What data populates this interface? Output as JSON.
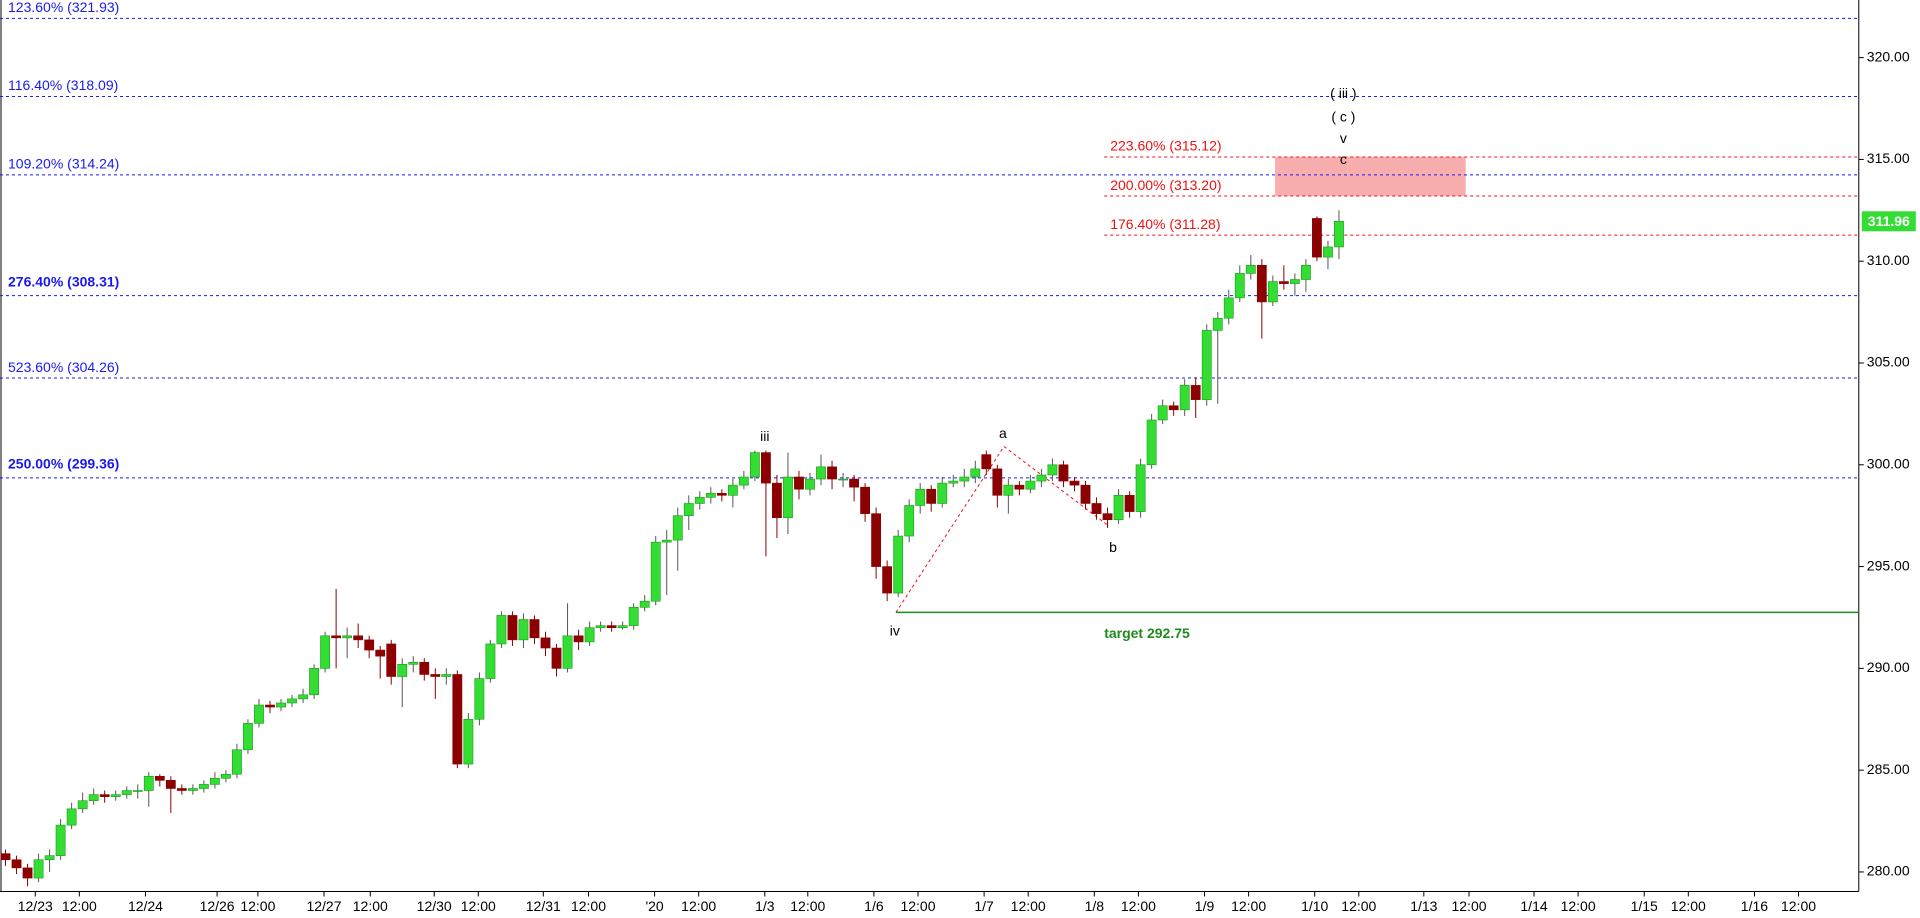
{
  "chart_data": {
    "type": "candlestick",
    "x": [
      0.5,
      1.5,
      2.5,
      3.5,
      4.5,
      5.5,
      6.5,
      7.5,
      8.5,
      9.5,
      10.5,
      11.5,
      12.5,
      13.5,
      14.5,
      15.5,
      16.5,
      17.5,
      18.5,
      19.5,
      20.5,
      21.5,
      22.5,
      23.5,
      24.5,
      25.5,
      26.5,
      27.5,
      28.5,
      29.5,
      30.5,
      31.5,
      32.5,
      33.5,
      34.5,
      35.5,
      36.5,
      37.5,
      38.5,
      39.5,
      40.5,
      41.5,
      42.5,
      43.5,
      44.5,
      45.5,
      46.5,
      47.5,
      48.5,
      49.5,
      50.5,
      51.5,
      52.5,
      53.5,
      54.5,
      55.5,
      56.5,
      57.5,
      58.5,
      59.5,
      60.5,
      61.5,
      62.5,
      63.5,
      64.5,
      65.5,
      66.5,
      67.5,
      68.5,
      69.5,
      70.5,
      71.5,
      72.5,
      73.5,
      74.5,
      75.5,
      76.5,
      77.5,
      78.5,
      79.5,
      80.5,
      81.5,
      82.5,
      83.5,
      84.5,
      85.5,
      86.5,
      87.5,
      88.5,
      89.5,
      90.5,
      91.5,
      92.5,
      93.5,
      94.5,
      95.5,
      96.5,
      97.5,
      98.5,
      99.5,
      100.5,
      101.5,
      102.5,
      103.5,
      104.5,
      105.5,
      106.5,
      107.5,
      108.5,
      109.5,
      110.5,
      111.5,
      112.5,
      113.5,
      114.5,
      115.5,
      116.5,
      117.5,
      118.5,
      119.5,
      120.5,
      121.5
    ],
    "ohlc": [
      [
        280.9,
        281.1,
        280.3,
        280.6
      ],
      [
        280.6,
        280.8,
        279.9,
        280.2
      ],
      [
        280.2,
        280.4,
        279.3,
        279.7
      ],
      [
        279.7,
        280.9,
        279.5,
        280.6
      ],
      [
        280.6,
        281.1,
        280.0,
        280.8
      ],
      [
        280.8,
        282.6,
        280.6,
        282.3
      ],
      [
        282.3,
        283.4,
        282.1,
        283.1
      ],
      [
        283.1,
        283.9,
        282.9,
        283.5
      ],
      [
        283.5,
        284.1,
        283.3,
        283.8
      ],
      [
        283.8,
        284.0,
        283.4,
        283.7
      ],
      [
        283.7,
        284.0,
        283.5,
        283.8
      ],
      [
        283.8,
        284.2,
        283.6,
        284.0
      ],
      [
        284.0,
        284.3,
        283.6,
        284.0
      ],
      [
        284.0,
        284.9,
        283.2,
        284.7
      ],
      [
        284.7,
        284.8,
        284.2,
        284.5
      ],
      [
        284.5,
        284.7,
        282.9,
        284.1
      ],
      [
        284.1,
        284.3,
        283.8,
        284.0
      ],
      [
        284.0,
        284.3,
        283.8,
        284.1
      ],
      [
        284.1,
        284.5,
        283.9,
        284.3
      ],
      [
        284.3,
        284.9,
        284.1,
        284.6
      ],
      [
        284.6,
        285.0,
        284.4,
        284.8
      ],
      [
        284.8,
        286.3,
        284.6,
        286.0
      ],
      [
        286.0,
        287.5,
        285.8,
        287.3
      ],
      [
        287.3,
        288.5,
        287.1,
        288.2
      ],
      [
        288.2,
        288.4,
        287.8,
        288.1
      ],
      [
        288.1,
        288.5,
        287.9,
        288.3
      ],
      [
        288.3,
        288.7,
        288.1,
        288.5
      ],
      [
        288.5,
        289.0,
        288.3,
        288.7
      ],
      [
        288.7,
        290.2,
        288.5,
        290.0
      ],
      [
        290.0,
        291.8,
        289.8,
        291.6
      ],
      [
        291.6,
        293.9,
        290.0,
        291.5
      ],
      [
        291.5,
        292.0,
        290.5,
        291.6
      ],
      [
        291.6,
        292.2,
        291.0,
        291.4
      ],
      [
        291.4,
        291.6,
        290.5,
        290.9
      ],
      [
        290.9,
        291.1,
        289.5,
        290.6
      ],
      [
        291.2,
        291.4,
        289.2,
        289.6
      ],
      [
        289.6,
        290.5,
        288.1,
        290.2
      ],
      [
        290.2,
        290.6,
        289.8,
        290.3
      ],
      [
        290.3,
        290.5,
        289.4,
        289.7
      ],
      [
        289.7,
        290.0,
        288.5,
        289.6
      ],
      [
        289.6,
        290.0,
        289.2,
        289.7
      ],
      [
        289.7,
        289.9,
        285.1,
        285.3
      ],
      [
        285.3,
        287.8,
        285.1,
        287.5
      ],
      [
        287.5,
        289.8,
        287.2,
        289.5
      ],
      [
        289.5,
        291.4,
        289.3,
        291.2
      ],
      [
        291.2,
        292.8,
        291.0,
        292.6
      ],
      [
        292.6,
        292.8,
        291.1,
        291.4
      ],
      [
        291.4,
        292.7,
        291.0,
        292.4
      ],
      [
        292.4,
        292.6,
        291.2,
        291.5
      ],
      [
        291.5,
        291.8,
        290.6,
        291.0
      ],
      [
        291.0,
        291.2,
        289.6,
        290.0
      ],
      [
        290.0,
        293.2,
        289.8,
        291.6
      ],
      [
        291.6,
        291.9,
        290.9,
        291.3
      ],
      [
        291.3,
        292.3,
        291.1,
        292.0
      ],
      [
        292.0,
        292.3,
        291.8,
        292.1
      ],
      [
        292.1,
        292.3,
        291.8,
        292.0
      ],
      [
        292.0,
        292.3,
        291.9,
        292.1
      ],
      [
        292.1,
        293.2,
        291.9,
        293.0
      ],
      [
        293.0,
        293.6,
        292.8,
        293.3
      ],
      [
        293.3,
        296.5,
        293.1,
        296.2
      ],
      [
        296.2,
        296.8,
        293.6,
        296.3
      ],
      [
        296.3,
        297.9,
        294.8,
        297.5
      ],
      [
        297.5,
        298.5,
        296.8,
        298.1
      ],
      [
        298.1,
        298.7,
        297.8,
        298.4
      ],
      [
        298.4,
        298.9,
        298.1,
        298.6
      ],
      [
        298.6,
        298.8,
        298.2,
        298.5
      ],
      [
        298.5,
        299.3,
        297.9,
        299.0
      ],
      [
        299.0,
        299.7,
        298.8,
        299.4
      ],
      [
        299.4,
        300.7,
        299.2,
        300.6
      ],
      [
        300.6,
        300.7,
        295.5,
        299.1
      ],
      [
        299.1,
        299.5,
        296.4,
        297.4
      ],
      [
        297.4,
        300.6,
        296.6,
        299.4
      ],
      [
        299.4,
        299.7,
        298.3,
        298.8
      ],
      [
        298.8,
        299.6,
        298.5,
        299.3
      ],
      [
        299.3,
        300.5,
        299.0,
        299.9
      ],
      [
        299.9,
        300.2,
        298.8,
        299.3
      ],
      [
        299.3,
        299.6,
        298.9,
        299.3
      ],
      [
        299.3,
        299.5,
        298.2,
        298.9
      ],
      [
        298.9,
        299.1,
        297.2,
        297.6
      ],
      [
        297.6,
        297.9,
        294.4,
        295.0
      ],
      [
        295.0,
        295.3,
        293.3,
        293.7
      ],
      [
        293.7,
        296.8,
        293.5,
        296.5
      ],
      [
        296.5,
        298.3,
        296.2,
        298.0
      ],
      [
        298.0,
        299.1,
        297.6,
        298.8
      ],
      [
        298.8,
        299.0,
        297.7,
        298.1
      ],
      [
        298.1,
        299.4,
        297.9,
        299.1
      ],
      [
        299.1,
        299.5,
        298.9,
        299.2
      ],
      [
        299.2,
        299.8,
        298.9,
        299.4
      ],
      [
        299.4,
        300.2,
        299.1,
        299.8
      ],
      [
        300.5,
        300.7,
        299.5,
        299.8
      ],
      [
        299.8,
        300.0,
        297.9,
        298.5
      ],
      [
        298.5,
        299.3,
        297.6,
        299.0
      ],
      [
        299.0,
        299.2,
        298.5,
        298.8
      ],
      [
        298.8,
        299.5,
        298.6,
        299.2
      ],
      [
        299.2,
        299.8,
        298.9,
        299.5
      ],
      [
        299.5,
        300.3,
        299.2,
        300.0
      ],
      [
        300.0,
        300.2,
        298.9,
        299.2
      ],
      [
        299.2,
        299.4,
        298.7,
        299.0
      ],
      [
        299.0,
        299.2,
        297.8,
        298.1
      ],
      [
        298.1,
        298.4,
        297.3,
        297.6
      ],
      [
        297.6,
        297.9,
        296.9,
        297.3
      ],
      [
        297.3,
        298.8,
        297.1,
        298.5
      ],
      [
        298.5,
        298.7,
        297.4,
        297.7
      ],
      [
        297.7,
        300.3,
        297.4,
        300.0
      ],
      [
        300.0,
        302.5,
        299.8,
        302.2
      ],
      [
        302.2,
        303.2,
        302.0,
        302.9
      ],
      [
        302.9,
        303.1,
        302.4,
        302.7
      ],
      [
        302.7,
        304.2,
        302.4,
        303.9
      ],
      [
        303.9,
        304.3,
        302.3,
        303.2
      ],
      [
        303.2,
        306.9,
        302.9,
        306.6
      ],
      [
        306.6,
        307.5,
        303.0,
        307.2
      ],
      [
        307.2,
        308.6,
        306.9,
        308.2
      ],
      [
        308.2,
        309.8,
        308.0,
        309.4
      ],
      [
        309.4,
        310.3,
        309.1,
        309.8
      ],
      [
        309.8,
        310.1,
        306.2,
        308.0
      ],
      [
        308.0,
        309.3,
        307.8,
        309.0
      ],
      [
        309.0,
        309.8,
        308.6,
        308.9
      ],
      [
        308.9,
        309.4,
        308.3,
        309.1
      ],
      [
        309.1,
        310.1,
        308.5,
        309.8
      ],
      [
        312.1,
        312.2,
        310.0,
        310.2
      ],
      [
        310.2,
        311.0,
        309.6,
        310.7
      ],
      [
        310.7,
        312.5,
        310.1,
        311.96
      ]
    ],
    "up_color": "#33dd33",
    "down_color": "#8b0000",
    "xlim": [
      0,
      168.67
    ],
    "ylim": [
      279.04,
      322.83
    ],
    "yticks": [
      {
        "value": 280,
        "label": "280.00"
      },
      {
        "value": 285,
        "label": "285.00"
      },
      {
        "value": 290,
        "label": "290.00"
      },
      {
        "value": 295,
        "label": "295.00"
      },
      {
        "value": 300,
        "label": "300.00"
      },
      {
        "value": 305,
        "label": "305.00"
      },
      {
        "value": 310,
        "label": "310.00"
      },
      {
        "value": 315,
        "label": "315.00"
      },
      {
        "value": 320,
        "label": "320.00"
      }
    ],
    "xticks": [
      {
        "value": 3.2,
        "label": "12/23"
      },
      {
        "value": 7.2,
        "label": "12:00"
      },
      {
        "value": 13.2,
        "label": "12/24"
      },
      {
        "value": 19.7,
        "label": "12/26"
      },
      {
        "value": 23.4,
        "label": "12:00"
      },
      {
        "value": 29.4,
        "label": "12/27"
      },
      {
        "value": 33.6,
        "label": "12:00"
      },
      {
        "value": 39.4,
        "label": "12/30"
      },
      {
        "value": 43.4,
        "label": "12:00"
      },
      {
        "value": 49.3,
        "label": "12/31"
      },
      {
        "value": 53.4,
        "label": "12:00"
      },
      {
        "value": 59.4,
        "label": "'20"
      },
      {
        "value": 63.4,
        "label": "12:00"
      },
      {
        "value": 69.4,
        "label": "1/3"
      },
      {
        "value": 73.3,
        "label": "12:00"
      },
      {
        "value": 79.3,
        "label": "1/6"
      },
      {
        "value": 83.3,
        "label": "12:00"
      },
      {
        "value": 89.3,
        "label": "1/7"
      },
      {
        "value": 93.3,
        "label": "12:00"
      },
      {
        "value": 99.3,
        "label": "1/8"
      },
      {
        "value": 103.3,
        "label": "12:00"
      },
      {
        "value": 109.3,
        "label": "1/9"
      },
      {
        "value": 113.3,
        "label": "12:00"
      },
      {
        "value": 119.3,
        "label": "1/10"
      },
      {
        "value": 123.3,
        "label": "12:00"
      },
      {
        "value": 129.2,
        "label": "1/13"
      },
      {
        "value": 133.3,
        "label": "12:00"
      },
      {
        "value": 139.2,
        "label": "1/14"
      },
      {
        "value": 143.2,
        "label": "12:00"
      },
      {
        "value": 149.2,
        "label": "1/15"
      },
      {
        "value": 153.2,
        "label": "12:00"
      },
      {
        "value": 159.2,
        "label": "1/16"
      },
      {
        "value": 163.2,
        "label": "12:00"
      }
    ],
    "blue_levels": [
      {
        "label": "123.60% (321.93)",
        "value": 321.93
      },
      {
        "label": "116.40% (318.09)",
        "value": 318.09
      },
      {
        "label": "109.20% (314.24)",
        "value": 314.24
      },
      {
        "label": "276.40% (308.31)",
        "value": 308.31,
        "emphasis": true
      },
      {
        "label": "523.60% (304.26)",
        "value": 304.26
      },
      {
        "label": "250.00% (299.36)",
        "value": 299.36,
        "emphasis": true
      }
    ],
    "blue_color": "#1a1aee",
    "red_levels": {
      "x_start": 100.2,
      "color": "#ee1111",
      "levels": [
        {
          "label": "223.60% (315.12)",
          "value": 315.12
        },
        {
          "label": "200.00% (313.20)",
          "value": 313.2
        },
        {
          "label": "176.40% (311.28)",
          "value": 311.28
        }
      ]
    },
    "zone": {
      "x": [
        115.7,
        133.0
      ],
      "y": [
        313.2,
        315.12
      ],
      "color": "#f7a5a5"
    },
    "target": {
      "label": "target 292.75",
      "value": 292.75,
      "x_start": 81.3,
      "color": "#1e8b1e"
    },
    "zigzag": {
      "x": [
        81.3,
        91.1,
        100.6
      ],
      "y": [
        292.75,
        300.9,
        297.0
      ],
      "color": "#ee1111"
    },
    "waves": [
      {
        "label": "iii",
        "x": 69.4,
        "y": 301.35
      },
      {
        "label": "iv",
        "x": 81.2,
        "y": 291.8
      },
      {
        "label": "a",
        "x": 91.0,
        "y": 301.5
      },
      {
        "label": "b",
        "x": 101.0,
        "y": 295.9
      },
      {
        "label": "( iii )",
        "x": 121.9,
        "y": 318.2
      },
      {
        "label": "( c )",
        "x": 121.9,
        "y": 317.05
      },
      {
        "label": "v",
        "x": 121.9,
        "y": 316.0
      },
      {
        "label": "c",
        "x": 121.9,
        "y": 314.95
      }
    ],
    "last": {
      "label": "311.96",
      "value": 311.96,
      "color": "#33dd33"
    }
  }
}
